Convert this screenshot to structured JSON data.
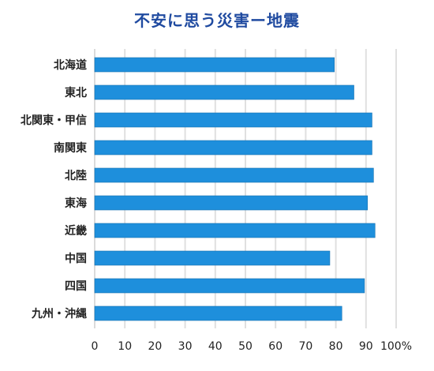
{
  "chart_data": {
    "type": "bar",
    "orientation": "horizontal",
    "title": "不安に思う災害ー地震",
    "categories": [
      "北海道",
      "東北",
      "北関東・甲信",
      "南関東",
      "北陸",
      "東海",
      "近畿",
      "中国",
      "四国",
      "九州・沖縄"
    ],
    "values": [
      79.5,
      86,
      92,
      92,
      92.5,
      90.5,
      93,
      78,
      89.5,
      82
    ],
    "xlim": [
      0,
      100
    ],
    "xticks": [
      0,
      10,
      20,
      30,
      40,
      50,
      60,
      70,
      80,
      90,
      100
    ],
    "xtick_labels": [
      "0",
      "10",
      "20",
      "30",
      "40",
      "50",
      "60",
      "70",
      "80",
      "90",
      "100%"
    ],
    "grid": true,
    "legend": "none",
    "colors": {
      "bar": "#1e8fdc",
      "bar_edge": "#1670b0",
      "title": "#1f4aa0",
      "grid": "#e0e0e0"
    }
  }
}
